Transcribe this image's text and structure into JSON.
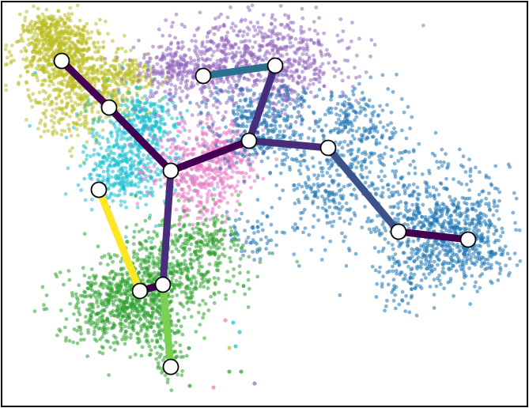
{
  "palette": {
    "olive": "#bcbd22",
    "cyan": "#17becf",
    "pink": "#e377c2",
    "purple": "#9467bd",
    "blue": "#1f77b4",
    "green": "#2ca02c"
  },
  "edge_colors": {
    "dark_purple": "#440154",
    "indigo": "#472d7b",
    "slate": "#3b528b",
    "steel": "#2c728e",
    "yellow": "#fde725",
    "lime": "#7ad151"
  },
  "node_style": {
    "fill": "#ffffff",
    "stroke": "#000000"
  },
  "frame_color": "#000000"
}
